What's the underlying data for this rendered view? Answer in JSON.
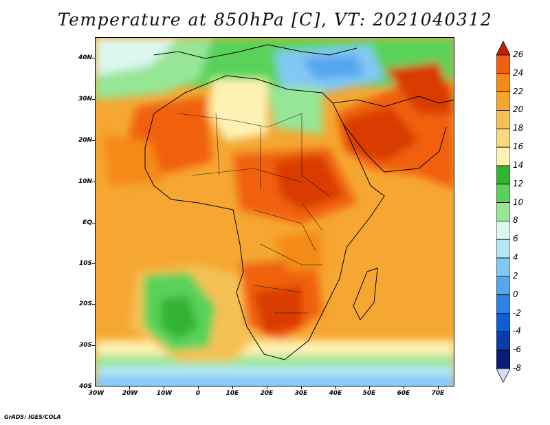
{
  "title": "Temperature at 850hPa [C], VT: 2021040312",
  "credit": "GrADS: IGES/COLA",
  "map": {
    "lat_labels": [
      "40N",
      "30N",
      "20N",
      "10N",
      "EQ",
      "10S",
      "20S",
      "30S",
      "40S"
    ],
    "lon_labels": [
      "30W",
      "20W",
      "10W",
      "0",
      "10E",
      "20E",
      "30E",
      "40E",
      "50E",
      "60E",
      "70E"
    ],
    "lat_range": [
      -40,
      44
    ],
    "lon_range": [
      -30,
      75
    ]
  },
  "colorbar": {
    "labels": [
      "26",
      "24",
      "22",
      "20",
      "18",
      "16",
      "14",
      "12",
      "10",
      "8",
      "6",
      "4",
      "2",
      "0",
      "-2",
      "-4",
      "-6",
      "-8"
    ],
    "colors": [
      "#d93a00",
      "#f06010",
      "#f58a18",
      "#f5a732",
      "#f5c155",
      "#f5d880",
      "#fdf2b4",
      "#32b432",
      "#5ad25a",
      "#96e696",
      "#dcf8f0",
      "#b4e6fa",
      "#82c8f5",
      "#55a5f0",
      "#2d82e6",
      "#0f5fd2",
      "#0a3caa",
      "#0a1e78"
    ],
    "top_color": "#c81e00",
    "bottom_color": "#d8dcf8"
  }
}
